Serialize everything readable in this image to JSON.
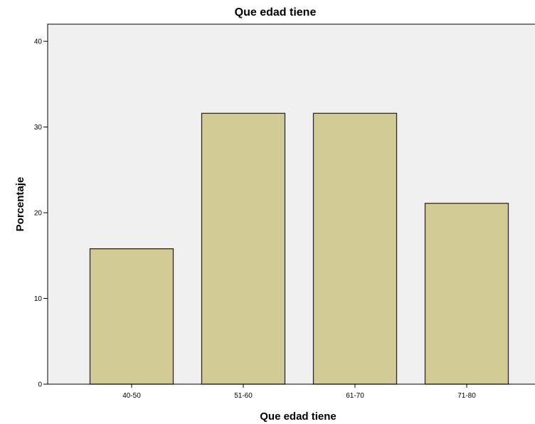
{
  "chart_data": {
    "type": "bar",
    "title": "Que edad tiene",
    "xlabel": "Que edad tiene",
    "ylabel": "Porcentaje",
    "categories": [
      "40-50",
      "51-60",
      "61-70",
      "71-80"
    ],
    "values": [
      15.8,
      31.6,
      31.6,
      21.1
    ],
    "ylim": [
      0,
      42
    ],
    "yticks": [
      0,
      10,
      20,
      30,
      40
    ],
    "grid": false,
    "legend": "none",
    "colors": {
      "bar_fill": "#d2cb96",
      "bar_stroke": "#2b2b2b",
      "plot_background": "#f0f0f0",
      "axis": "#000000"
    }
  }
}
